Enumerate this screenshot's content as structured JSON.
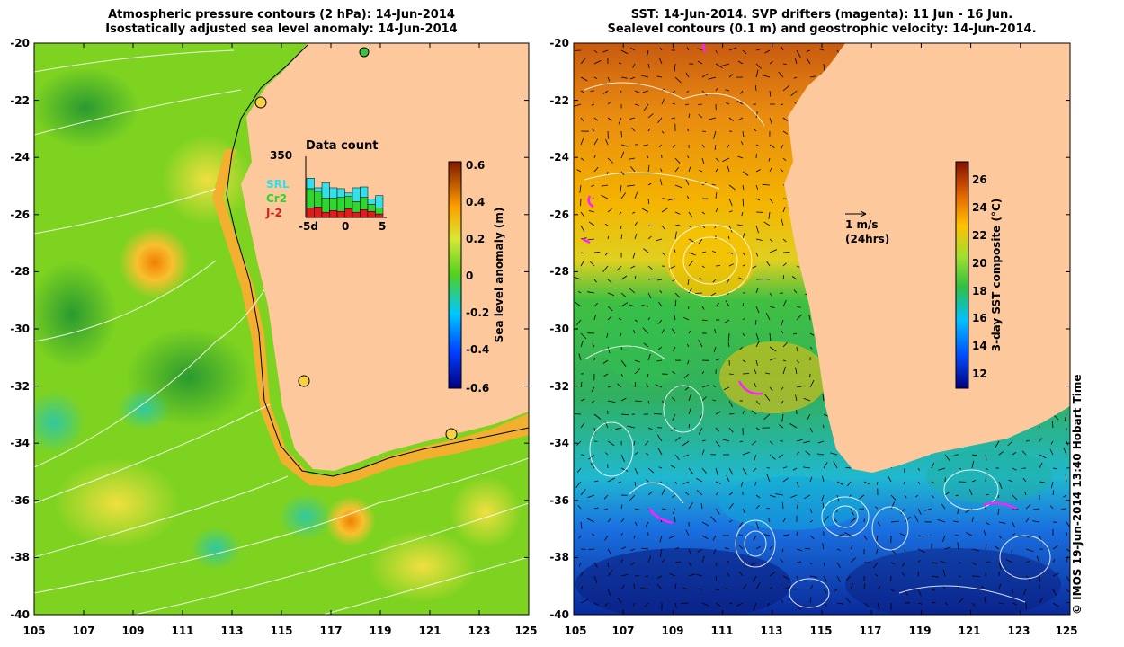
{
  "left_panel": {
    "title_line1": "Atmospheric pressure contours (2 hPa): 14-Jun-2014",
    "title_line2": "Isostatically adjusted sea level anomaly: 14-Jun-2014",
    "colorbar_label": "Sea level anomaly (m)",
    "colorbar_ticks": [
      "0.6",
      "0.4",
      "0.2",
      "0",
      "-0.2",
      "-0.4",
      "-0.6"
    ],
    "inset": {
      "title": "Data count",
      "max_label": "350",
      "legend": [
        {
          "label": "SRL",
          "color": "#33dfe8"
        },
        {
          "label": "Cr2",
          "color": "#2fd62f"
        },
        {
          "label": "J-2",
          "color": "#e01b1b"
        }
      ],
      "x_ticks": [
        "-5d",
        "0",
        "5"
      ],
      "bars": [
        {
          "day": -5,
          "j2": 55,
          "cr2": 110,
          "srl": 60
        },
        {
          "day": -4,
          "j2": 60,
          "cr2": 90,
          "srl": 20
        },
        {
          "day": -3,
          "j2": 30,
          "cr2": 80,
          "srl": 90
        },
        {
          "day": -2,
          "j2": 40,
          "cr2": 70,
          "srl": 60
        },
        {
          "day": -1,
          "j2": 35,
          "cr2": 80,
          "srl": 50
        },
        {
          "day": 0,
          "j2": 50,
          "cr2": 70,
          "srl": 20
        },
        {
          "day": 1,
          "j2": 30,
          "cr2": 60,
          "srl": 80
        },
        {
          "day": 2,
          "j2": 45,
          "cr2": 70,
          "srl": 60
        },
        {
          "day": 3,
          "j2": 35,
          "cr2": 40,
          "srl": 30
        },
        {
          "day": 4,
          "j2": 20,
          "cr2": 35,
          "srl": 70
        }
      ]
    }
  },
  "right_panel": {
    "title_line1": "SST: 14-Jun-2014. SVP drifters (magenta): 11 Jun - 16 Jun.",
    "title_line2": "Sealevel contours (0.1 m) and geostrophic velocity: 14-Jun-2014.",
    "colorbar_label": "3-day SST composite (°C)",
    "colorbar_ticks": [
      "26",
      "24",
      "22",
      "20",
      "18",
      "16",
      "14",
      "12"
    ],
    "scale_label_1": "1 m/s",
    "scale_label_2": "(24hrs)"
  },
  "axes": {
    "lat_ticks": [
      "-20",
      "-22",
      "-24",
      "-26",
      "-28",
      "-30",
      "-32",
      "-34",
      "-36",
      "-38",
      "-40"
    ],
    "lon_ticks": [
      "105",
      "107",
      "109",
      "111",
      "113",
      "115",
      "117",
      "119",
      "121",
      "123",
      "125"
    ]
  },
  "credit": "© IMOS 19-Jun-2014 13:40 Hobart Time",
  "colors": {
    "land": "#fcc89c",
    "ssla_ocean": "#7ed321",
    "sst_warm": "#f2a000"
  }
}
